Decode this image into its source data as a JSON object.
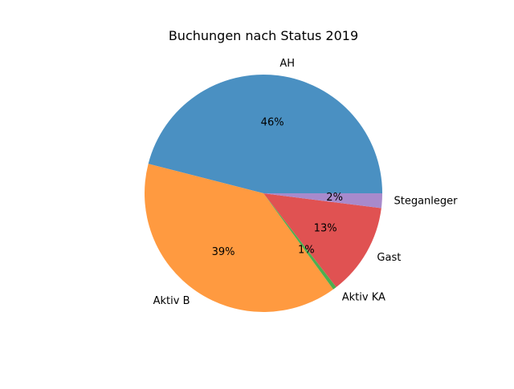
{
  "chart_data": {
    "type": "pie",
    "title": "Buchungen nach Status 2019",
    "slices": [
      {
        "label": "AH",
        "value": 46,
        "pct_label": "46%",
        "color": "#4a90c2"
      },
      {
        "label": "Aktiv B",
        "value": 39,
        "pct_label": "39%",
        "color": "#ff9a40"
      },
      {
        "label": "Aktiv KA",
        "value": 0.5,
        "pct_label": "1%",
        "color": "#4caf50"
      },
      {
        "label": "Gast",
        "value": 12.5,
        "pct_label": "13%",
        "color": "#e05252"
      },
      {
        "label": "Steganleger",
        "value": 2,
        "pct_label": "2%",
        "color": "#a88acc"
      }
    ],
    "start_angle": "0 degrees (3 o'clock), counterclockwise"
  }
}
